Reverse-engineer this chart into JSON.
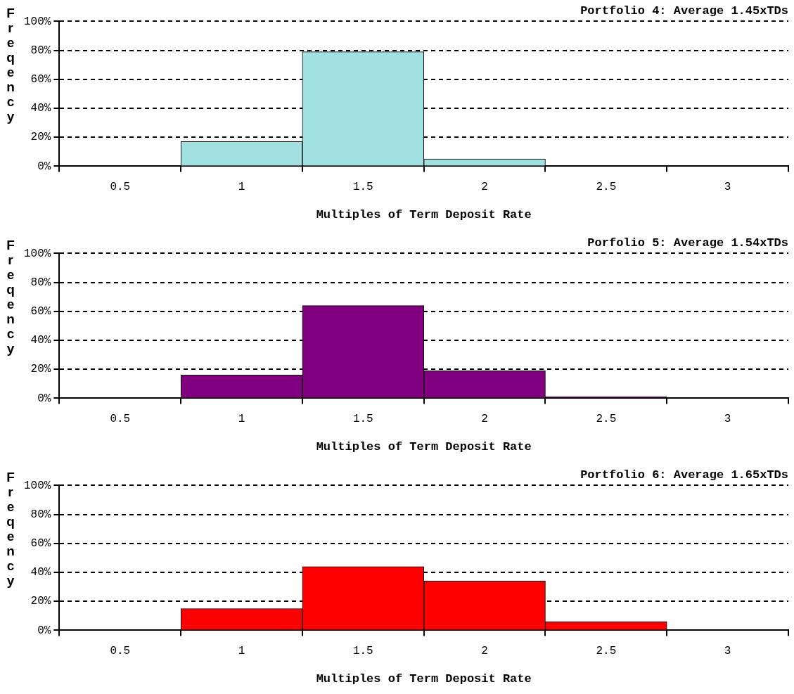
{
  "chart_data": [
    {
      "type": "bar",
      "title": "Portfolio 4: Average 1.45xTDs",
      "xlabel": "Multiples of Term Deposit Rate",
      "ylabel": "Freqency",
      "categories": [
        "0.5",
        "1",
        "1.5",
        "2",
        "2.5",
        "3"
      ],
      "values": [
        0,
        17,
        79,
        5,
        0,
        0
      ],
      "color": "#a0e0e0",
      "ylim": [
        0,
        100
      ],
      "yticks": [
        {
          "value": 0,
          "label": "0%"
        },
        {
          "value": 20,
          "label": "20%"
        },
        {
          "value": 40,
          "label": "40%"
        },
        {
          "value": 60,
          "label": "60%"
        },
        {
          "value": 80,
          "label": "80%"
        },
        {
          "value": 100,
          "label": "100%"
        }
      ],
      "grid": "y",
      "legend": false
    },
    {
      "type": "bar",
      "title": "Porfolio 5: Average 1.54xTDs",
      "xlabel": "Multiples of Term Deposit Rate",
      "ylabel": "Freqency",
      "categories": [
        "0.5",
        "1",
        "1.5",
        "2",
        "2.5",
        "3"
      ],
      "values": [
        0,
        16,
        64,
        19,
        1,
        0
      ],
      "color": "#800080",
      "ylim": [
        0,
        100
      ],
      "yticks": [
        {
          "value": 0,
          "label": "0%"
        },
        {
          "value": 20,
          "label": "20%"
        },
        {
          "value": 40,
          "label": "40%"
        },
        {
          "value": 60,
          "label": "60%"
        },
        {
          "value": 80,
          "label": "80%"
        },
        {
          "value": 100,
          "label": "100%"
        }
      ],
      "grid": "y",
      "legend": false
    },
    {
      "type": "bar",
      "title": "Portfolio 6: Average 1.65xTDs",
      "xlabel": "Multiples of Term Deposit Rate",
      "ylabel": "Freqency",
      "categories": [
        "0.5",
        "1",
        "1.5",
        "2",
        "2.5",
        "3"
      ],
      "values": [
        0,
        15,
        44,
        34,
        6,
        0
      ],
      "color": "#ff0000",
      "ylim": [
        0,
        100
      ],
      "yticks": [
        {
          "value": 0,
          "label": "0%"
        },
        {
          "value": 20,
          "label": "20%"
        },
        {
          "value": 40,
          "label": "40%"
        },
        {
          "value": 60,
          "label": "60%"
        },
        {
          "value": 80,
          "label": "80%"
        },
        {
          "value": 100,
          "label": "100%"
        }
      ],
      "grid": "y",
      "legend": false
    }
  ]
}
